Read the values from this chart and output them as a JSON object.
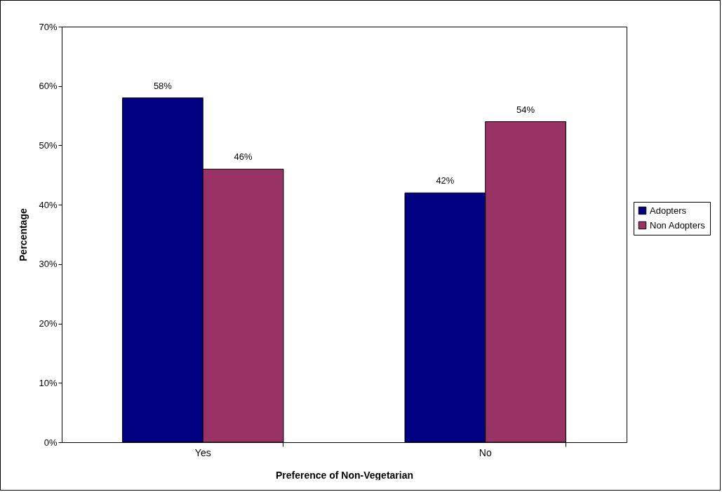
{
  "chart_data": {
    "type": "bar",
    "xlabel": "Preference of Non-Vegetarian",
    "ylabel": "Percentage",
    "categories": [
      "Yes",
      "No"
    ],
    "series": [
      {
        "name": "Adopters",
        "color": "#000080",
        "values": [
          58,
          42
        ],
        "value_labels": [
          "58%",
          "42%"
        ]
      },
      {
        "name": "Non Adopters",
        "color": "#993366",
        "values": [
          46,
          54
        ],
        "value_labels": [
          "46%",
          "54%"
        ]
      }
    ],
    "ylim": [
      0,
      70
    ],
    "yticks": [
      {
        "value": 0,
        "label": "0%"
      },
      {
        "value": 10,
        "label": "10%"
      },
      {
        "value": 20,
        "label": "20%"
      },
      {
        "value": 30,
        "label": "30%"
      },
      {
        "value": 40,
        "label": "40%"
      },
      {
        "value": 50,
        "label": "50%"
      },
      {
        "value": 60,
        "label": "60%"
      },
      {
        "value": 70,
        "label": "70%"
      }
    ],
    "grid": false,
    "legend": "right"
  }
}
